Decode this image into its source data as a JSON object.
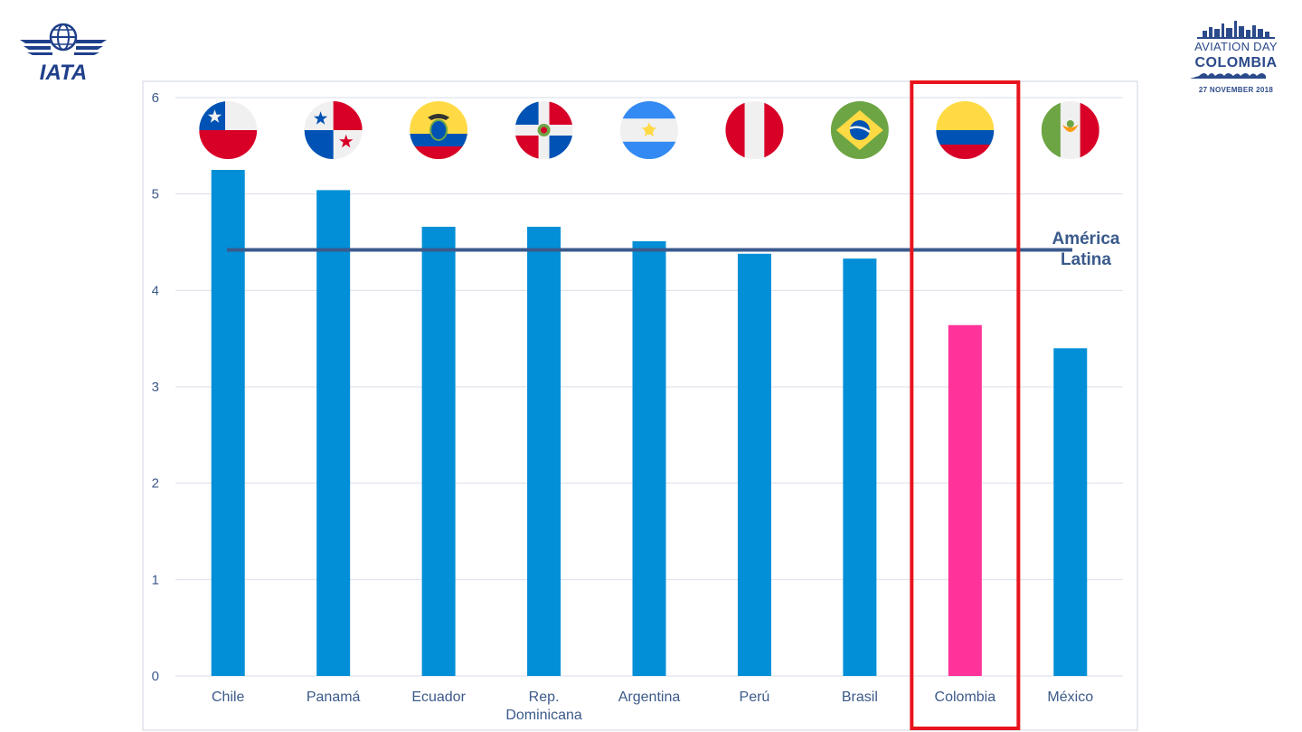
{
  "logos": {
    "left_text": "IATA",
    "right_line1": "AVIATION DAY",
    "right_line2": "COLOMBIA",
    "right_line3": "27 NOVEMBER 2018"
  },
  "colors": {
    "bar": "#028fd7",
    "highlight_bar": "#ff3399",
    "reference_line": "#3a5a8c",
    "highlight_box": "#e8141c",
    "grid": "#d9dee8",
    "axis_text": "#3c5a8a"
  },
  "chart_data": {
    "type": "bar",
    "categories": [
      "Chile",
      "Panamá",
      "Ecuador",
      "Rep. Dominicana",
      "Argentina",
      "Perú",
      "Brasil",
      "Colombia",
      "México"
    ],
    "category_lines": [
      [
        "Chile"
      ],
      [
        "Panamá"
      ],
      [
        "Ecuador"
      ],
      [
        "Rep.",
        "Dominicana"
      ],
      [
        "Argentina"
      ],
      [
        "Perú"
      ],
      [
        "Brasil"
      ],
      [
        "Colombia"
      ],
      [
        "México"
      ]
    ],
    "values": [
      5.25,
      5.04,
      4.66,
      4.66,
      4.51,
      4.38,
      4.33,
      3.64,
      3.4
    ],
    "highlight": "Colombia",
    "flags": [
      "chile-flag-icon",
      "panama-flag-icon",
      "ecuador-flag-icon",
      "dominican-republic-flag-icon",
      "argentina-flag-icon",
      "peru-flag-icon",
      "brazil-flag-icon",
      "colombia-flag-icon",
      "mexico-flag-icon"
    ],
    "reference_line": {
      "value": 4.42,
      "label_line1": "América",
      "label_line2": "Latina"
    },
    "ylim": [
      0,
      6
    ],
    "yticks": [
      0,
      1,
      2,
      3,
      4,
      5,
      6
    ],
    "grid": true,
    "title": "",
    "xlabel": "",
    "ylabel": ""
  }
}
